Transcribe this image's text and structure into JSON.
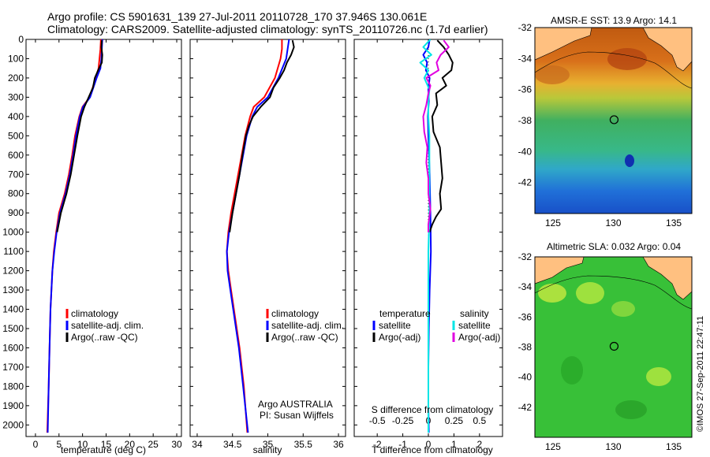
{
  "header": {
    "line1": "Argo profile: CS 5901631_139 27-Jul-2011 20110728_170 37.946S 130.061E",
    "line2": "Climatology: CARS2009. Satellite-adjusted climatology: synTS_20110726.nc (1.7d earlier)"
  },
  "colors": {
    "red": "#ff0000",
    "blue": "#0000ff",
    "black": "#000000",
    "cyan": "#00e5e5",
    "magenta": "#e000e0",
    "land": "#ffc080"
  },
  "side_text": "©IMOS 27-Sep-2011 22:47:11",
  "attribution": {
    "line1": "Argo AUSTRALIA",
    "line2": "PI: Susan Wijffels"
  },
  "chart_data": [
    {
      "id": "temperature",
      "type": "line",
      "xlabel": "temperature (deg C)",
      "xlim": [
        -2,
        31
      ],
      "ylim": [
        2060,
        0
      ],
      "xticks": [
        0,
        5,
        10,
        15,
        20,
        25,
        30
      ],
      "yticks": [
        0,
        100,
        200,
        300,
        400,
        500,
        600,
        700,
        800,
        900,
        1000,
        1100,
        1200,
        1300,
        1400,
        1500,
        1600,
        1700,
        1800,
        1900,
        2000
      ],
      "legend": [
        "climatology",
        "satellite-adj. clim.",
        "Argo(..raw -QC)"
      ],
      "series": [
        {
          "name": "climatology",
          "color": "red",
          "depth": [
            0,
            50,
            100,
            150,
            200,
            300,
            350,
            400,
            500,
            600,
            700,
            800,
            900,
            1000,
            1100,
            1200,
            1400,
            1600,
            1800,
            2040
          ],
          "values": [
            13.9,
            13.8,
            13.6,
            13.4,
            12.8,
            11.5,
            10.0,
            9.3,
            8.4,
            7.8,
            7.1,
            6.2,
            5.0,
            4.4,
            3.9,
            3.6,
            3.2,
            3.0,
            2.8,
            2.5
          ]
        },
        {
          "name": "satellite-adj. clim.",
          "color": "blue",
          "depth": [
            0,
            50,
            100,
            150,
            200,
            300,
            350,
            400,
            500,
            600,
            700,
            800,
            900,
            1000,
            1100,
            1200,
            1400,
            1600,
            1800,
            2040
          ],
          "values": [
            14.2,
            14.1,
            14.0,
            13.8,
            13.0,
            11.6,
            10.1,
            9.4,
            8.6,
            8.0,
            7.3,
            6.4,
            5.2,
            4.5,
            4.0,
            3.6,
            3.2,
            3.0,
            2.8,
            2.6
          ]
        },
        {
          "name": "Argo(..raw -QC)",
          "color": "black",
          "depth": [
            5,
            40,
            80,
            120,
            150,
            200,
            250,
            300,
            350,
            400,
            500,
            600,
            700,
            800,
            900,
            1000
          ],
          "values": [
            14.1,
            14.0,
            14.2,
            14.1,
            13.5,
            12.6,
            12.2,
            11.3,
            10.4,
            9.7,
            8.9,
            8.2,
            7.5,
            6.6,
            5.4,
            4.6
          ]
        }
      ]
    },
    {
      "id": "salinity",
      "type": "line",
      "xlabel": "salinity",
      "xlim": [
        33.9,
        36.1
      ],
      "ylim": [
        2060,
        0
      ],
      "xticks": [
        34,
        34.5,
        35,
        35.5,
        36
      ],
      "legend": [
        "climatology",
        "satellite-adj. clim.",
        "Argo(..raw -QC)"
      ],
      "series": [
        {
          "name": "climatology",
          "color": "red",
          "depth": [
            0,
            50,
            100,
            200,
            300,
            350,
            400,
            500,
            600,
            700,
            800,
            900,
            1000,
            1100,
            1200,
            1300,
            1400,
            1600,
            1800,
            2040
          ],
          "values": [
            35.2,
            35.2,
            35.18,
            35.1,
            34.95,
            34.8,
            34.75,
            34.68,
            34.63,
            34.58,
            34.53,
            34.48,
            34.44,
            34.42,
            34.44,
            34.48,
            34.52,
            34.6,
            34.66,
            34.71
          ]
        },
        {
          "name": "satellite-adj. clim.",
          "color": "blue",
          "depth": [
            0,
            50,
            100,
            200,
            300,
            350,
            400,
            500,
            600,
            700,
            800,
            900,
            1000,
            1100,
            1200,
            1300,
            1400,
            1600,
            1800,
            2040
          ],
          "values": [
            35.3,
            35.28,
            35.26,
            35.15,
            35.0,
            34.85,
            34.78,
            34.7,
            34.65,
            34.6,
            34.55,
            34.5,
            34.45,
            34.42,
            34.43,
            34.47,
            34.51,
            34.59,
            34.65,
            34.72
          ]
        },
        {
          "name": "Argo(..raw -QC)",
          "color": "black",
          "depth": [
            5,
            40,
            80,
            120,
            160,
            200,
            250,
            300,
            350,
            400,
            450,
            500,
            600,
            700,
            800,
            900,
            1000
          ],
          "values": [
            35.35,
            35.37,
            35.33,
            35.27,
            35.23,
            35.17,
            35.08,
            35.03,
            34.9,
            34.79,
            34.73,
            34.69,
            34.64,
            34.6,
            34.55,
            34.5,
            34.46
          ]
        }
      ]
    },
    {
      "id": "differences",
      "type": "line",
      "xlabel": "T difference from climatology",
      "xlabel_top": "S difference from climatology",
      "xlim": [
        -2.9,
        2.9
      ],
      "ylim": [
        2060,
        0
      ],
      "xticks": [
        -2,
        -1,
        0,
        1,
        2
      ],
      "xticks_s": [
        -0.5,
        -0.25,
        0,
        0.25,
        0.5
      ],
      "legend_titles": [
        "temperature",
        "salinity"
      ],
      "legend_t": [
        "satellite",
        "Argo(-adj)"
      ],
      "legend_s": [
        "satellite",
        "Argo(-adj)"
      ],
      "series": [
        {
          "name": "T satellite",
          "color": "blue",
          "depth": [
            0,
            40,
            80,
            120,
            160,
            200,
            260,
            320,
            400,
            500,
            700,
            900,
            1100,
            1300,
            1500,
            1700,
            1900,
            2040
          ],
          "values": [
            0.05,
            0.0,
            -0.2,
            -0.05,
            -0.1,
            0.05,
            0.0,
            0.02,
            -0.02,
            0.0,
            0.05,
            0.08,
            0.1,
            0.05,
            0.02,
            0.0,
            0.0,
            0.02
          ]
        },
        {
          "name": "T Argo(-adj)",
          "color": "black",
          "depth": [
            5,
            40,
            80,
            120,
            160,
            200,
            240,
            280,
            340,
            400,
            480,
            560,
            640,
            720,
            800,
            880,
            920,
            960,
            1000
          ],
          "values": [
            0.35,
            0.6,
            0.8,
            0.95,
            0.9,
            0.55,
            0.7,
            0.3,
            0.35,
            0.15,
            0.2,
            0.45,
            0.5,
            0.55,
            0.45,
            0.5,
            0.3,
            0.15,
            0.05
          ]
        },
        {
          "name": "S satellite",
          "color": "cyan",
          "depth": [
            0,
            40,
            80,
            120,
            160,
            200,
            260,
            320,
            400,
            500,
            700,
            900,
            1100,
            1300,
            1500,
            1700,
            1900,
            2040
          ],
          "values": [
            0.02,
            -0.05,
            0.03,
            -0.08,
            0.0,
            -0.04,
            0.01,
            0.0,
            0.0,
            0.01,
            0.01,
            0.01,
            0.0,
            0.0,
            0.0,
            0.0,
            0.0,
            0.0
          ]
        },
        {
          "name": "S Argo(-adj)",
          "color": "magenta",
          "depth": [
            5,
            40,
            80,
            120,
            160,
            200,
            240,
            280,
            340,
            400,
            480,
            560,
            640,
            720,
            800,
            880,
            920,
            960,
            1000
          ],
          "values": [
            0.15,
            0.2,
            0.12,
            0.08,
            0.1,
            -0.02,
            0.02,
            0.0,
            -0.02,
            -0.05,
            -0.04,
            -0.01,
            -0.02,
            0.0,
            0.0,
            0.02,
            0.01,
            0.0,
            0.0
          ]
        }
      ]
    },
    {
      "id": "sst_map",
      "type": "heatmap",
      "title": "AMSR-E SST: 13.9  Argo: 14.1",
      "xlim": [
        123.5,
        136.5
      ],
      "ylim": [
        -44,
        -32
      ],
      "xticks": [
        125,
        130,
        135
      ],
      "yticks": [
        -32,
        -34,
        -36,
        -38,
        -40,
        -42
      ],
      "marker": {
        "lon": 130.061,
        "lat": -37.946
      }
    },
    {
      "id": "sla_map",
      "type": "heatmap",
      "title": "Altimetric SLA: 0.032  Argo: 0.04",
      "xlim": [
        123.5,
        136.5
      ],
      "ylim": [
        -44,
        -32
      ],
      "xticks": [
        125,
        130,
        135
      ],
      "yticks": [
        -32,
        -34,
        -36,
        -38,
        -40,
        -42
      ],
      "marker": {
        "lon": 130.061,
        "lat": -37.946
      }
    }
  ]
}
